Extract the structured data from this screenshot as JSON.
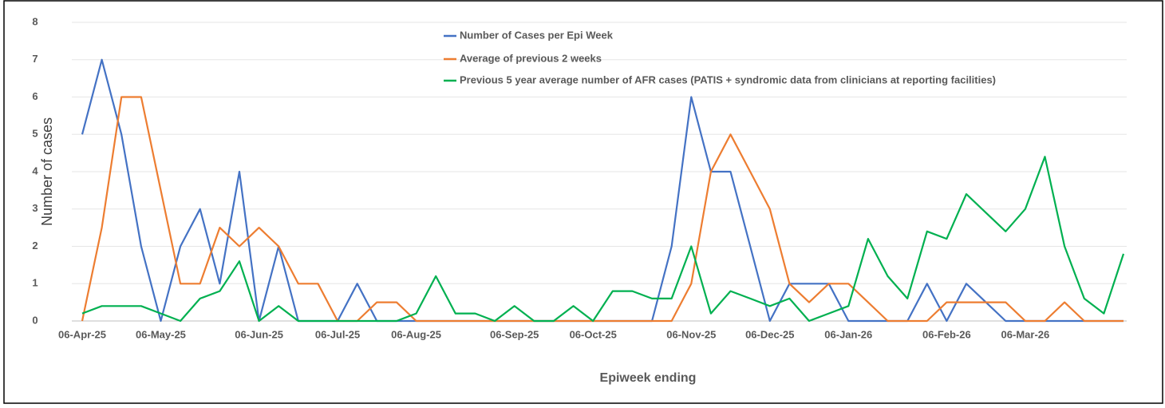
{
  "chart_data": {
    "type": "line",
    "y_label": "Number of cases",
    "x_label": "Epiweek ending",
    "categories": [
      "06-Apr-25",
      null,
      null,
      null,
      "06-May-25",
      null,
      null,
      null,
      null,
      "06-Jun-25",
      null,
      null,
      null,
      "06-Jul-25",
      null,
      null,
      null,
      "06-Aug-25",
      null,
      null,
      null,
      null,
      "06-Sep-25",
      null,
      null,
      null,
      "06-Oct-25",
      null,
      null,
      null,
      null,
      "06-Nov-25",
      null,
      null,
      null,
      "06-Dec-25",
      null,
      null,
      null,
      "06-Jan-26",
      null,
      null,
      null,
      null,
      "06-Feb-26",
      null,
      null,
      null,
      "06-Mar-26",
      null,
      null,
      null,
      null,
      null
    ],
    "series": [
      {
        "name": "Number of Cases per Epi Week",
        "color": "#4472c4",
        "values": [
          5,
          7,
          5,
          2,
          0,
          2,
          3,
          1,
          4,
          0,
          2,
          0,
          0,
          0,
          1,
          0,
          0,
          0,
          0,
          0,
          0,
          0,
          0,
          0,
          0,
          0,
          0,
          0,
          0,
          0,
          2,
          6,
          4,
          4,
          2,
          0,
          1,
          1,
          1,
          0,
          0,
          0,
          0,
          1,
          0,
          1,
          0.5,
          0,
          0,
          0,
          0,
          0,
          0,
          0
        ]
      },
      {
        "name": "Average of previous 2 weeks",
        "color": "#ed7d31",
        "values": [
          0,
          2.5,
          6,
          6,
          3.5,
          1,
          1,
          2.5,
          2,
          2.5,
          2,
          1,
          1,
          0,
          0,
          0.5,
          0.5,
          0,
          0,
          0,
          0,
          0,
          0,
          0,
          0,
          0,
          0,
          0,
          0,
          0,
          0,
          1,
          4,
          5,
          4,
          3,
          1,
          0.5,
          1,
          1,
          0.5,
          0,
          0,
          0,
          0.5,
          0.5,
          0.5,
          0.5,
          0,
          0,
          0.5,
          0,
          0,
          0
        ]
      },
      {
        "name": "Previous 5 year average number of AFR cases (PATIS + syndromic data from clinicians at reporting facilities)",
        "color": "#00b050",
        "values": [
          0.2,
          0.4,
          0.4,
          0.4,
          0.2,
          0,
          0.6,
          0.8,
          1.6,
          0,
          0.4,
          0,
          0,
          0,
          0,
          0,
          0,
          0.2,
          1.2,
          0.2,
          0.2,
          0,
          0.4,
          0,
          0,
          0.4,
          0,
          0.8,
          0.8,
          0.6,
          0.6,
          2,
          0.2,
          0.8,
          0.6,
          0.4,
          0.6,
          0,
          0.2,
          0.4,
          2.2,
          1.2,
          0.6,
          2.4,
          2.2,
          3.4,
          2.9,
          2.4,
          3,
          4.4,
          2,
          0.6,
          0.2,
          1.8
        ]
      }
    ],
    "ylim": [
      0,
      8
    ],
    "yticks": [
      0,
      1,
      2,
      3,
      4,
      5,
      6,
      7,
      8
    ],
    "grid": true
  }
}
